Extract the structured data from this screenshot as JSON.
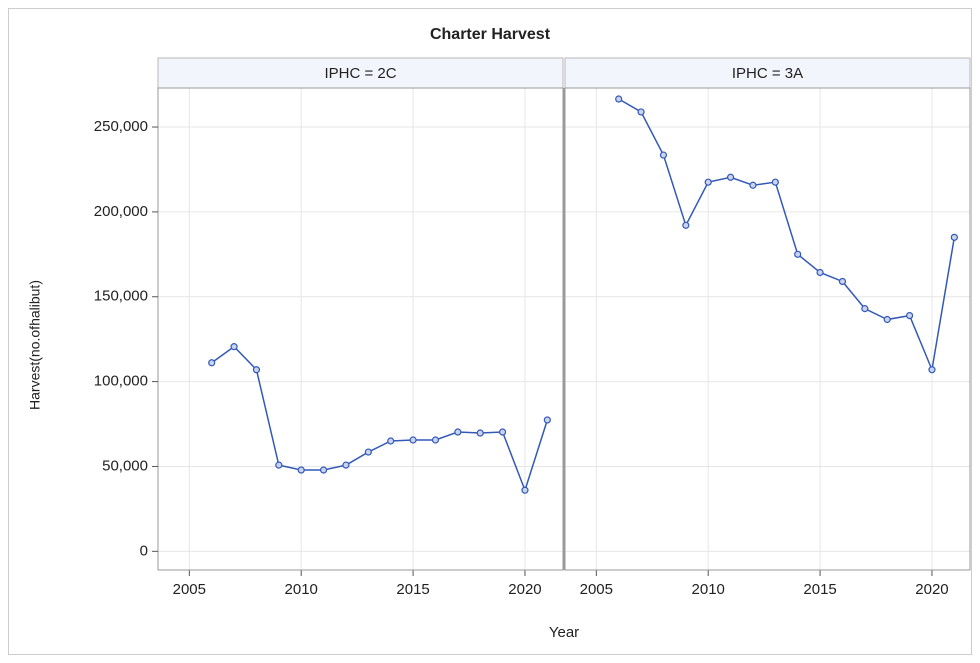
{
  "chart_data": {
    "type": "line",
    "title": "Charter Harvest",
    "xlabel": "Year",
    "ylabel": "Harvest(no.ofhalibut)",
    "color": "#3358b8",
    "grid": true,
    "xlim": [
      2003.6,
      2021.7
    ],
    "xticks": [
      2005,
      2010,
      2015,
      2020
    ],
    "ylim": [
      -11000,
      273000
    ],
    "yticks": [
      0,
      {
        "value": 50000,
        "label": "50,000"
      },
      {
        "value": 100000,
        "label": "100,000"
      },
      {
        "value": 150000,
        "label": "150,000"
      },
      {
        "value": 200000,
        "label": "200,000"
      },
      {
        "value": 250000,
        "label": "250,000"
      }
    ],
    "panels": [
      {
        "label": "IPHC = 2C",
        "x": [
          2006,
          2007,
          2008,
          2009,
          2010,
          2011,
          2012,
          2013,
          2014,
          2015,
          2016,
          2017,
          2018,
          2019,
          2020,
          2021
        ],
        "values": [
          111100,
          120600,
          107000,
          50800,
          47900,
          47900,
          50800,
          58500,
          65000,
          65600,
          65600,
          70300,
          69700,
          70300,
          36000,
          77400
        ]
      },
      {
        "label": "IPHC = 3A",
        "x": [
          2006,
          2007,
          2008,
          2009,
          2010,
          2011,
          2012,
          2013,
          2014,
          2015,
          2016,
          2017,
          2018,
          2019,
          2020,
          2021
        ],
        "values": [
          266500,
          258900,
          233500,
          192100,
          217500,
          220400,
          215700,
          217500,
          175000,
          164300,
          159000,
          143000,
          136600,
          138900,
          107000,
          185000
        ]
      }
    ]
  }
}
